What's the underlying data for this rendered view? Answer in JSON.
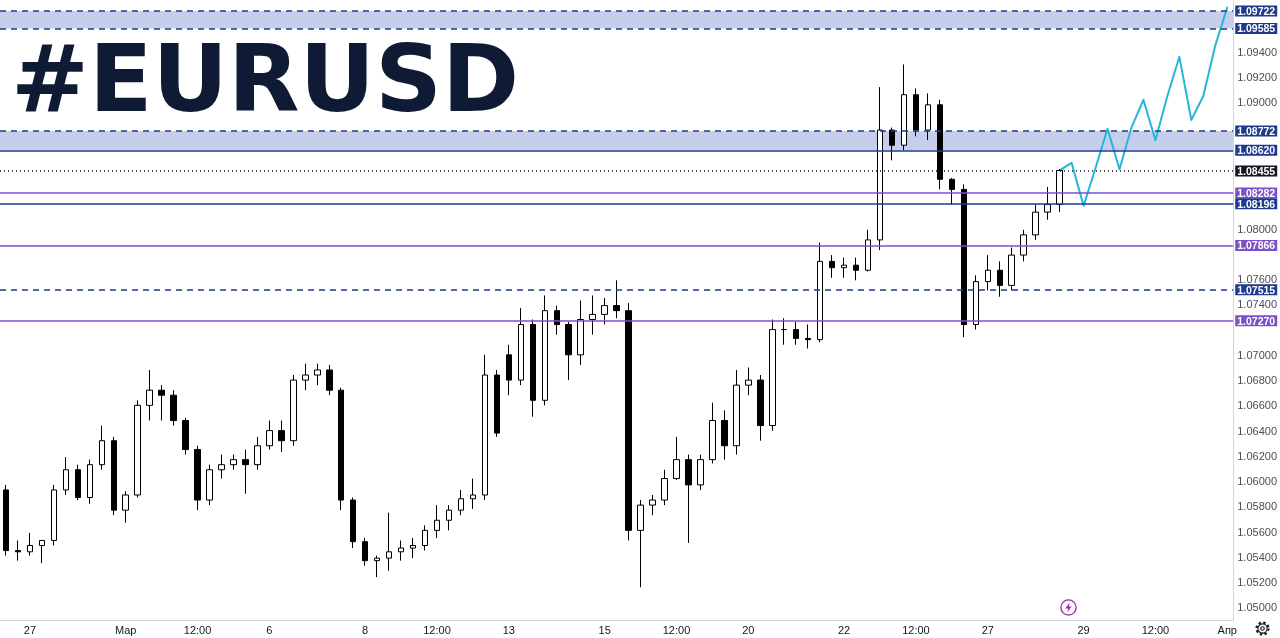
{
  "chart_data": {
    "type": "candlestick",
    "title": "#EURUSD",
    "categories": [
      null,
      null,
      "27",
      null,
      null,
      null,
      null,
      null,
      null,
      null,
      "Мар",
      null,
      null,
      null,
      null,
      null,
      "12:00",
      null,
      null,
      null,
      null,
      null,
      "6",
      null,
      null,
      null,
      null,
      null,
      null,
      null,
      "8",
      null,
      null,
      null,
      null,
      null,
      "12:00",
      null,
      null,
      null,
      null,
      null,
      "13",
      null,
      null,
      null,
      null,
      null,
      null,
      null,
      "15",
      null,
      null,
      null,
      null,
      null,
      "12:00",
      null,
      null,
      null,
      null,
      null,
      "20",
      null,
      null,
      null,
      null,
      null,
      null,
      null,
      "22",
      null,
      null,
      null,
      null,
      null,
      "12:00",
      null,
      null,
      null,
      null,
      null,
      "27",
      null,
      null,
      null,
      null,
      null,
      null,
      null,
      "29",
      null,
      null,
      null,
      null,
      null,
      "12:00",
      null,
      null,
      null,
      null,
      null,
      "Апр"
    ],
    "ohlc": [
      [
        1.0593,
        1.0597,
        1.0541,
        1.0545
      ],
      [
        1.0545,
        1.0553,
        1.0537,
        1.0544
      ],
      [
        1.0544,
        1.0559,
        1.0541,
        1.0549
      ],
      [
        1.0549,
        1.0553,
        1.0535,
        1.0553
      ],
      [
        1.0553,
        1.0597,
        1.0549,
        1.0593
      ],
      [
        1.0593,
        1.0619,
        1.0589,
        1.0609
      ],
      [
        1.0609,
        1.0613,
        1.0585,
        1.0587
      ],
      [
        1.0587,
        1.0617,
        1.0582,
        1.0613
      ],
      [
        1.0613,
        1.0644,
        1.0609,
        1.0632
      ],
      [
        1.0632,
        1.0635,
        1.0573,
        1.0577
      ],
      [
        1.0577,
        1.0592,
        1.0567,
        1.0589
      ],
      [
        1.0589,
        1.0664,
        1.0587,
        1.066
      ],
      [
        1.066,
        1.0688,
        1.0648,
        1.0672
      ],
      [
        1.0672,
        1.0676,
        1.0648,
        1.0668
      ],
      [
        1.0668,
        1.0672,
        1.0644,
        1.0648
      ],
      [
        1.0648,
        1.065,
        1.0621,
        1.0625
      ],
      [
        1.0625,
        1.0628,
        1.0577,
        1.0585
      ],
      [
        1.0585,
        1.0613,
        1.0581,
        1.0609
      ],
      [
        1.0609,
        1.0621,
        1.0602,
        1.0613
      ],
      [
        1.0613,
        1.0621,
        1.0609,
        1.0617
      ],
      [
        1.0617,
        1.0625,
        1.059,
        1.0613
      ],
      [
        1.0613,
        1.0635,
        1.0609,
        1.0628
      ],
      [
        1.0628,
        1.0648,
        1.0625,
        1.064
      ],
      [
        1.064,
        1.0648,
        1.0623,
        1.0632
      ],
      [
        1.0632,
        1.0684,
        1.0628,
        1.068
      ],
      [
        1.068,
        1.0693,
        1.0672,
        1.0684
      ],
      [
        1.0684,
        1.0693,
        1.0676,
        1.0688
      ],
      [
        1.0688,
        1.0692,
        1.0668,
        1.0672
      ],
      [
        1.0672,
        1.0674,
        1.0577,
        1.0585
      ],
      [
        1.0585,
        1.0587,
        1.0547,
        1.0552
      ],
      [
        1.0552,
        1.0555,
        1.0533,
        1.0537
      ],
      [
        1.0537,
        1.0541,
        1.0524,
        1.0539
      ],
      [
        1.0539,
        1.0575,
        1.0529,
        1.0544
      ],
      [
        1.0544,
        1.0553,
        1.0537,
        1.0547
      ],
      [
        1.0547,
        1.0555,
        1.0539,
        1.0549
      ],
      [
        1.0549,
        1.0565,
        1.0545,
        1.0561
      ],
      [
        1.0561,
        1.0581,
        1.0555,
        1.0569
      ],
      [
        1.0569,
        1.0581,
        1.0561,
        1.0577
      ],
      [
        1.0577,
        1.0593,
        1.0573,
        1.0586
      ],
      [
        1.0586,
        1.0602,
        1.0578,
        1.0589
      ],
      [
        1.0589,
        1.07,
        1.0585,
        1.0684
      ],
      [
        1.0684,
        1.0688,
        1.0635,
        1.0638
      ],
      [
        1.07,
        1.0708,
        1.0668,
        1.068
      ],
      [
        1.068,
        1.0737,
        1.0676,
        1.0724
      ],
      [
        1.0724,
        1.0728,
        1.0651,
        1.0664
      ],
      [
        1.0664,
        1.0747,
        1.066,
        1.0735
      ],
      [
        1.0735,
        1.0739,
        1.0716,
        1.0724
      ],
      [
        1.0724,
        1.0726,
        1.068,
        1.07
      ],
      [
        1.07,
        1.0743,
        1.0692,
        1.0728
      ],
      [
        1.0728,
        1.0747,
        1.0716,
        1.0732
      ],
      [
        1.0732,
        1.0745,
        1.0724,
        1.0739
      ],
      [
        1.0739,
        1.0759,
        1.0729,
        1.0735
      ],
      [
        1.0735,
        1.0741,
        1.0553,
        1.0561
      ],
      [
        1.0561,
        1.0585,
        1.0516,
        1.0581
      ],
      [
        1.0581,
        1.0589,
        1.0573,
        1.0585
      ],
      [
        1.0585,
        1.0609,
        1.0581,
        1.0602
      ],
      [
        1.0602,
        1.0635,
        1.0601,
        1.0617
      ],
      [
        1.0617,
        1.0621,
        1.0551,
        1.0597
      ],
      [
        1.0597,
        1.0621,
        1.0593,
        1.0617
      ],
      [
        1.0617,
        1.0662,
        1.0614,
        1.0648
      ],
      [
        1.0648,
        1.0656,
        1.0617,
        1.0628
      ],
      [
        1.0628,
        1.0688,
        1.0621,
        1.0676
      ],
      [
        1.0676,
        1.069,
        1.0668,
        1.068
      ],
      [
        1.068,
        1.0684,
        1.0632,
        1.0644
      ],
      [
        1.0644,
        1.0728,
        1.064,
        1.072
      ],
      [
        1.072,
        1.0729,
        1.0708,
        1.072
      ],
      [
        1.072,
        1.0726,
        1.0708,
        1.0713
      ],
      [
        1.0713,
        1.0724,
        1.0705,
        1.0712
      ],
      [
        1.0712,
        1.0789,
        1.071,
        1.0774
      ],
      [
        1.0774,
        1.0779,
        1.0761,
        1.0769
      ],
      [
        1.0769,
        1.0777,
        1.0761,
        1.0771
      ],
      [
        1.0771,
        1.0777,
        1.0759,
        1.0767
      ],
      [
        1.0767,
        1.0799,
        1.0766,
        1.0791
      ],
      [
        1.0791,
        1.0912,
        1.0783,
        1.0878
      ],
      [
        1.0878,
        1.088,
        1.0854,
        1.0866
      ],
      [
        1.0866,
        1.093,
        1.0862,
        1.0906
      ],
      [
        1.0906,
        1.0911,
        1.0873,
        1.0878
      ],
      [
        1.0878,
        1.0907,
        1.087,
        1.0898
      ],
      [
        1.0898,
        1.0902,
        1.0831,
        1.0839
      ],
      [
        1.0839,
        1.084,
        1.0819,
        1.0831
      ],
      [
        1.0831,
        1.0835,
        1.0714,
        1.0724
      ],
      [
        1.0724,
        1.0763,
        1.072,
        1.0758
      ],
      [
        1.0758,
        1.0779,
        1.0751,
        1.0767
      ],
      [
        1.0767,
        1.0774,
        1.0746,
        1.0755
      ],
      [
        1.0755,
        1.0785,
        1.0751,
        1.0779
      ],
      [
        1.0779,
        1.0799,
        1.0774,
        1.0795
      ],
      [
        1.0795,
        1.0819,
        1.0791,
        1.0813
      ],
      [
        1.0813,
        1.0833,
        1.0807,
        1.0819
      ],
      [
        1.0819,
        1.0847,
        1.0813,
        1.0846
      ],
      null,
      null,
      null,
      null,
      null,
      null,
      null,
      null,
      null,
      null,
      null,
      null,
      null,
      null
    ],
    "color": "#000000",
    "series": [
      {
        "type": "line",
        "color": "#26b6d9",
        "values": [
          null,
          null,
          null,
          null,
          null,
          null,
          null,
          null,
          null,
          null,
          null,
          null,
          null,
          null,
          null,
          null,
          null,
          null,
          null,
          null,
          null,
          null,
          null,
          null,
          null,
          null,
          null,
          null,
          null,
          null,
          null,
          null,
          null,
          null,
          null,
          null,
          null,
          null,
          null,
          null,
          null,
          null,
          null,
          null,
          null,
          null,
          null,
          null,
          null,
          null,
          null,
          null,
          null,
          null,
          null,
          null,
          null,
          null,
          null,
          null,
          null,
          null,
          null,
          null,
          null,
          null,
          null,
          null,
          null,
          null,
          null,
          null,
          null,
          null,
          null,
          null,
          null,
          null,
          null,
          null,
          null,
          null,
          null,
          null,
          null,
          null,
          null,
          null,
          1.0846,
          1.0852,
          1.0818,
          1.0848,
          1.0879,
          1.0847,
          1.088,
          1.0902,
          1.087,
          1.0905,
          1.0936,
          1.0886,
          1.0905,
          1.0945,
          1.0975
        ]
      }
    ],
    "marker": "none",
    "ylim": [
      1.049,
      1.0981
    ],
    "yticks": [
      {
        "value": 1.05,
        "label": "1.05000"
      },
      {
        "value": 1.052,
        "label": "1.05200"
      },
      {
        "value": 1.054,
        "label": "1.05400"
      },
      {
        "value": 1.056,
        "label": "1.05600"
      },
      {
        "value": 1.058,
        "label": "1.05800"
      },
      {
        "value": 1.06,
        "label": "1.06000"
      },
      {
        "value": 1.062,
        "label": "1.06200"
      },
      {
        "value": 1.064,
        "label": "1.06400"
      },
      {
        "value": 1.066,
        "label": "1.06600"
      },
      {
        "value": 1.068,
        "label": "1.06800"
      },
      {
        "value": 1.07,
        "label": "1.07000"
      },
      {
        "value": 1.074,
        "label": "1.07400"
      },
      {
        "value": 1.076,
        "label": "1.07600"
      },
      {
        "value": 1.08,
        "label": "1.08000"
      },
      {
        "value": 1.09,
        "label": "1.09000"
      },
      {
        "value": 1.092,
        "label": "1.09200"
      },
      {
        "value": 1.094,
        "label": "1.09400"
      }
    ],
    "ref_lines": [
      {
        "axis": "y",
        "value": 1.09722,
        "label": "1.09722",
        "color": "#1c3a8e",
        "line_style": "dashed"
      },
      {
        "axis": "y",
        "value": 1.09585,
        "label": "1.09585",
        "color": "#1c3a8e",
        "line_style": "dashed"
      },
      {
        "axis": "y",
        "value": 1.08772,
        "label": "1.08772",
        "color": "#1c3a8e",
        "line_style": "dashed"
      },
      {
        "axis": "y",
        "value": 1.0862,
        "label": "1.08620",
        "color": "#1c3a8e",
        "line_style": "solid"
      },
      {
        "axis": "y",
        "value": 1.08455,
        "label": "1.08455",
        "color": "#131722",
        "line_style": "dotted"
      },
      {
        "axis": "y",
        "value": 1.08282,
        "label": "1.08282",
        "color": "#7e4fc9",
        "line_style": "solid"
      },
      {
        "axis": "y",
        "value": 1.08196,
        "label": "1.08196",
        "color": "#1c3a8e",
        "line_style": "solid"
      },
      {
        "axis": "y",
        "value": 1.07866,
        "label": "1.07866",
        "color": "#7e4fc9",
        "line_style": "solid"
      },
      {
        "axis": "y",
        "value": 1.07515,
        "label": "1.07515",
        "color": "#1c3a8e",
        "line_style": "dashed"
      },
      {
        "axis": "y",
        "value": 1.0727,
        "label": "1.07270",
        "color": "#7e4fc9",
        "line_style": "solid"
      }
    ],
    "bands": [
      {
        "axis": "y",
        "from": 1.09585,
        "to": 1.09722,
        "color": "#c5cfec"
      },
      {
        "axis": "y",
        "from": 1.0862,
        "to": 1.08772,
        "color": "#c5cfec"
      }
    ]
  }
}
